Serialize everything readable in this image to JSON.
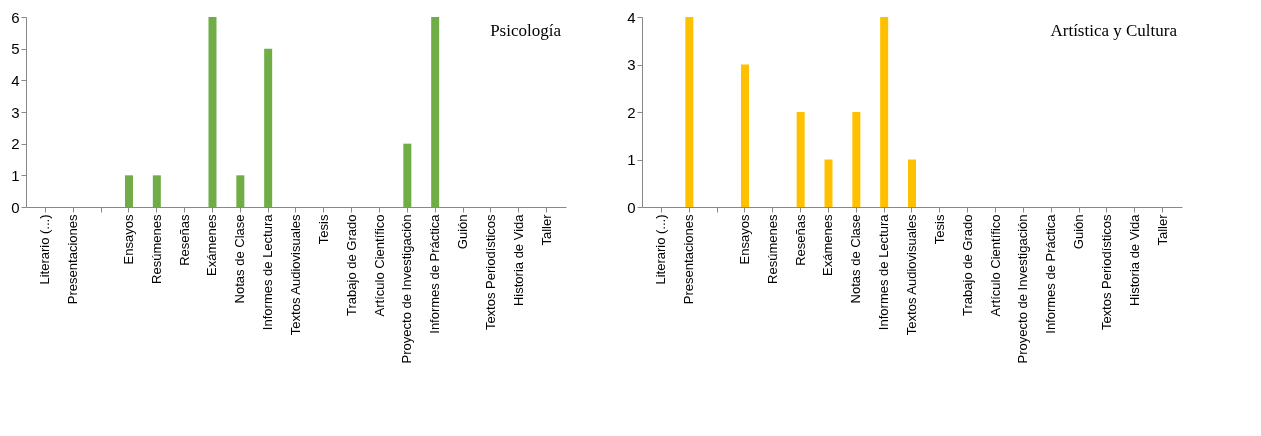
{
  "chart_data": [
    {
      "type": "bar",
      "title": "Psicología",
      "categories": [
        "Literario (...)",
        "Presentaciones",
        null,
        "Ensayos",
        "Resúmenes",
        "Reseñas",
        "Exámenes",
        "Notas de Clase",
        "Informes de Lectura",
        "Textos Audiovisuales",
        "Tesis",
        "Trabajo de Grado",
        "Artículo Científico",
        "Proyecto de Investigación",
        "Informes de Práctica",
        "Guión",
        "Textos Periodísticos",
        "Historia de Vida",
        "Taller"
      ],
      "values": [
        0,
        0,
        0,
        1,
        1,
        0,
        6,
        1,
        5,
        0,
        0,
        0,
        0,
        2,
        6,
        0,
        0,
        0,
        0
      ],
      "color": "#70ad47",
      "ylim": [
        0,
        6
      ],
      "yticks": [
        0,
        1,
        2,
        3,
        4,
        5,
        6
      ]
    },
    {
      "type": "bar",
      "title": "Artística y Cultura",
      "categories": [
        "Literario (...)",
        "Presentaciones",
        null,
        "Ensayos",
        "Resúmenes",
        "Reseñas",
        "Exámenes",
        "Notas de Clase",
        "Informes de Lectura",
        "Textos Audiovisuales",
        "Tesis",
        "Trabajo de Grado",
        "Artículo Científico",
        "Proyecto de Investigación",
        "Informes de Práctica",
        "Guión",
        "Textos Periodísticos",
        "Historia de Vida",
        "Taller"
      ],
      "values": [
        0,
        4,
        0,
        3,
        0,
        2,
        1,
        2,
        4,
        1,
        0,
        0,
        0,
        0,
        0,
        0,
        0,
        0,
        0
      ],
      "color": "#ffc000",
      "ylim": [
        0,
        4
      ],
      "yticks": [
        0,
        1,
        2,
        3,
        4
      ]
    }
  ]
}
